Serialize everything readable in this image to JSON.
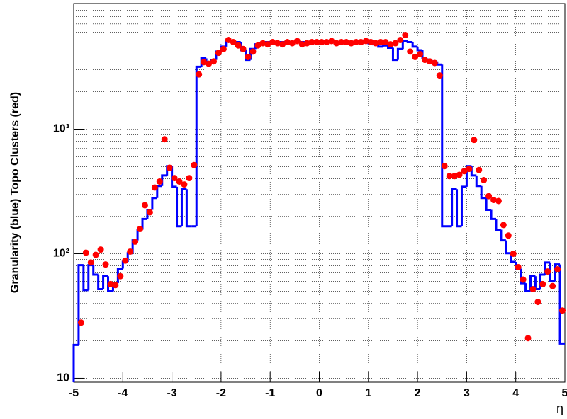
{
  "chart_data": {
    "type": "histogram",
    "x_label": "η",
    "y_label": "Granularity (blue) Topo Clusters (red)",
    "log_y": true,
    "grid": true,
    "ylim": [
      9.3,
      10200
    ],
    "yticks": [
      10,
      {
        "value": 100,
        "label": "10²"
      },
      {
        "value": 1000,
        "label": "10³"
      }
    ],
    "yminorticks": [
      20,
      30,
      40,
      50,
      60,
      70,
      80,
      90,
      200,
      300,
      400,
      500,
      600,
      700,
      800,
      900,
      2000,
      3000,
      4000,
      5000,
      6000,
      7000,
      8000,
      9000
    ],
    "xlim": [
      -5,
      5
    ],
    "xticks": [
      -5,
      -4,
      -3,
      -2,
      -1,
      0,
      1,
      2,
      3,
      4,
      5
    ],
    "bins": [
      -5,
      -4.9,
      -4.8,
      -4.7,
      -4.6,
      -4.5,
      -4.4,
      -4.3,
      -4.2,
      -4.1,
      -4,
      -3.9,
      -3.8,
      -3.7,
      -3.6,
      -3.5,
      -3.4,
      -3.3,
      -3.2,
      -3.1,
      -3,
      -2.9,
      -2.8,
      -2.7,
      -2.6,
      -2.5,
      -2.4,
      -2.3,
      -2.2,
      -2.1,
      -2,
      -1.9,
      -1.8,
      -1.7,
      -1.6,
      -1.5,
      -1.4,
      -1.3,
      -1.2,
      -1.1,
      -1,
      -0.9,
      -0.8,
      -0.7,
      -0.6,
      -0.5,
      -0.4,
      -0.3,
      -0.2,
      -0.1,
      0,
      0.1,
      0.2,
      0.3,
      0.4,
      0.5,
      0.6,
      0.7,
      0.8,
      0.9,
      1,
      1.1,
      1.2,
      1.3,
      1.4,
      1.5,
      1.6,
      1.7,
      1.8,
      1.9,
      2,
      2.1,
      2.2,
      2.3,
      2.4,
      2.5,
      2.6,
      2.7,
      2.8,
      2.9,
      3,
      3.1,
      3.2,
      3.3,
      3.4,
      3.5,
      3.6,
      3.7,
      3.8,
      3.9,
      4,
      4.1,
      4.2,
      4.3,
      4.4,
      4.5,
      4.6,
      4.7,
      4.8,
      4.9,
      5
    ],
    "histogram": {
      "color": "#0000ff",
      "values": [
        18.5,
        81,
        51,
        81,
        68,
        52,
        66,
        50,
        58,
        76,
        86,
        101,
        128,
        156,
        190,
        225,
        280,
        350,
        425,
        505,
        345,
        166,
        330,
        166,
        166,
        3170,
        3700,
        3450,
        3600,
        4200,
        4600,
        5100,
        5000,
        5000,
        4300,
        3600,
        4400,
        4800,
        4900,
        5000,
        5000,
        4900,
        5000,
        5000,
        4900,
        5000,
        5000,
        5000,
        4900,
        5000,
        5000,
        5000,
        5000,
        5000,
        5000,
        5000,
        5000,
        5000,
        5000,
        5000,
        4900,
        4800,
        4600,
        4700,
        4500,
        3600,
        4400,
        5100,
        5000,
        4600,
        4300,
        3700,
        3500,
        3500,
        3300,
        166,
        166,
        330,
        166,
        345,
        505,
        425,
        350,
        280,
        225,
        190,
        156,
        128,
        101,
        86,
        76,
        58,
        50,
        66,
        52,
        68,
        85,
        60,
        82,
        19
      ]
    },
    "points": {
      "color": "#ff0000",
      "x": [
        -4.95,
        -4.85,
        -4.75,
        -4.65,
        -4.55,
        -4.45,
        -4.35,
        -4.25,
        -4.15,
        -4.05,
        -3.95,
        -3.85,
        -3.75,
        -3.65,
        -3.55,
        -3.45,
        -3.35,
        -3.25,
        -3.15,
        -3.05,
        -2.95,
        -2.85,
        -2.75,
        -2.65,
        -2.55,
        -2.45,
        -2.35,
        -2.25,
        -2.15,
        -2.05,
        -1.95,
        -1.85,
        -1.75,
        -1.65,
        -1.55,
        -1.45,
        -1.35,
        -1.25,
        -1.15,
        -1.05,
        -0.95,
        -0.85,
        -0.75,
        -0.65,
        -0.55,
        -0.45,
        -0.35,
        -0.25,
        -0.15,
        -0.05,
        0.05,
        0.15,
        0.25,
        0.35,
        0.45,
        0.55,
        0.65,
        0.75,
        0.85,
        0.95,
        1.05,
        1.15,
        1.25,
        1.35,
        1.45,
        1.55,
        1.65,
        1.75,
        1.85,
        1.95,
        2.05,
        2.15,
        2.25,
        2.35,
        2.45,
        2.55,
        2.65,
        2.75,
        2.85,
        2.95,
        3.05,
        3.15,
        3.25,
        3.35,
        3.45,
        3.55,
        3.65,
        3.75,
        3.85,
        3.95,
        4.05,
        4.15,
        4.25,
        4.35,
        4.45,
        4.55,
        4.65,
        4.75,
        4.85,
        4.95
      ],
      "values": [
        null,
        28,
        102,
        85,
        98,
        108,
        82,
        57,
        56,
        66,
        88,
        104,
        125,
        158,
        245,
        215,
        340,
        380,
        830,
        490,
        405,
        380,
        360,
        405,
        515,
        2750,
        3450,
        3350,
        3500,
        4100,
        4400,
        5200,
        5000,
        4700,
        4400,
        3800,
        4200,
        4700,
        4900,
        4800,
        5000,
        4900,
        4800,
        5000,
        4900,
        5100,
        4800,
        4900,
        5000,
        5000,
        5000,
        5000,
        5100,
        4900,
        5000,
        5000,
        4900,
        5000,
        5000,
        5100,
        5000,
        4900,
        5000,
        5000,
        4800,
        4900,
        5200,
        5700,
        4200,
        3800,
        4000,
        3600,
        3500,
        3400,
        2700,
        505,
        420,
        420,
        430,
        460,
        480,
        820,
        470,
        390,
        290,
        270,
        265,
        170,
        140,
        100,
        78,
        62,
        21,
        52,
        41,
        57,
        72,
        55,
        75,
        35
      ]
    }
  }
}
